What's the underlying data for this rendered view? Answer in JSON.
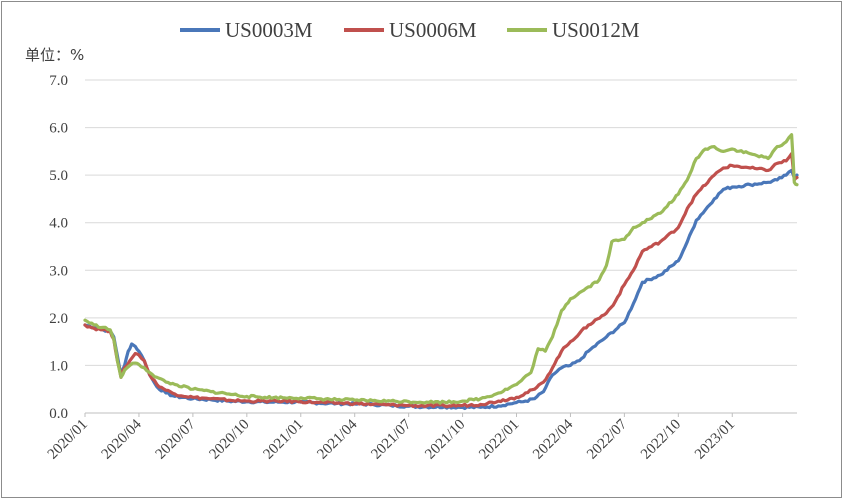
{
  "chart_data": {
    "type": "line",
    "title": "",
    "unit_label": "单位：%",
    "xlabel": "",
    "ylabel": "",
    "ylim": [
      0,
      7
    ],
    "y_ticks": [
      "0.0",
      "1.0",
      "2.0",
      "3.0",
      "4.0",
      "5.0",
      "6.0",
      "7.0"
    ],
    "x_ticks": [
      "2020/01",
      "2020/04",
      "2020/07",
      "2020/10",
      "2021/01",
      "2021/04",
      "2021/07",
      "2021/10",
      "2022/01",
      "2022/04",
      "2022/07",
      "2022/10",
      "2023/01"
    ],
    "x_range_months": [
      0,
      39.6
    ],
    "grid": true,
    "legend_position": "top",
    "series": [
      {
        "name": "US0003M",
        "color": "#4a77b9",
        "points": [
          [
            0,
            1.85
          ],
          [
            0.5,
            1.8
          ],
          [
            1,
            1.75
          ],
          [
            1.4,
            1.72
          ],
          [
            1.6,
            1.6
          ],
          [
            1.8,
            1.2
          ],
          [
            2,
            0.8
          ],
          [
            2.2,
            1.0
          ],
          [
            2.4,
            1.3
          ],
          [
            2.6,
            1.45
          ],
          [
            2.8,
            1.4
          ],
          [
            3,
            1.3
          ],
          [
            3.3,
            1.1
          ],
          [
            3.6,
            0.8
          ],
          [
            4,
            0.55
          ],
          [
            4.5,
            0.42
          ],
          [
            5,
            0.35
          ],
          [
            6,
            0.3
          ],
          [
            7,
            0.28
          ],
          [
            8,
            0.25
          ],
          [
            9,
            0.24
          ],
          [
            10,
            0.23
          ],
          [
            11,
            0.23
          ],
          [
            12,
            0.23
          ],
          [
            13,
            0.21
          ],
          [
            14,
            0.2
          ],
          [
            15,
            0.19
          ],
          [
            16,
            0.18
          ],
          [
            17,
            0.16
          ],
          [
            18,
            0.14
          ],
          [
            19,
            0.13
          ],
          [
            20,
            0.13
          ],
          [
            21,
            0.12
          ],
          [
            22,
            0.12
          ],
          [
            23,
            0.15
          ],
          [
            24,
            0.22
          ],
          [
            24.5,
            0.25
          ],
          [
            25,
            0.3
          ],
          [
            25.5,
            0.45
          ],
          [
            26,
            0.8
          ],
          [
            26.5,
            0.95
          ],
          [
            27,
            1.0
          ],
          [
            27.5,
            1.1
          ],
          [
            28,
            1.3
          ],
          [
            29,
            1.6
          ],
          [
            30,
            1.9
          ],
          [
            30.5,
            2.3
          ],
          [
            31,
            2.75
          ],
          [
            32,
            2.9
          ],
          [
            33,
            3.2
          ],
          [
            33.5,
            3.6
          ],
          [
            34,
            4.05
          ],
          [
            35,
            4.5
          ],
          [
            35.5,
            4.7
          ],
          [
            36,
            4.75
          ],
          [
            37,
            4.8
          ],
          [
            38,
            4.85
          ],
          [
            38.5,
            4.9
          ],
          [
            39,
            5.0
          ],
          [
            39.3,
            5.1
          ],
          [
            39.45,
            4.95
          ],
          [
            39.6,
            5.0
          ]
        ]
      },
      {
        "name": "US0006M",
        "color": "#c0504d",
        "points": [
          [
            0,
            1.85
          ],
          [
            0.5,
            1.78
          ],
          [
            1,
            1.75
          ],
          [
            1.4,
            1.72
          ],
          [
            1.6,
            1.55
          ],
          [
            1.8,
            1.1
          ],
          [
            2,
            0.75
          ],
          [
            2.2,
            0.95
          ],
          [
            2.5,
            1.1
          ],
          [
            2.8,
            1.25
          ],
          [
            3,
            1.22
          ],
          [
            3.3,
            1.1
          ],
          [
            3.6,
            0.8
          ],
          [
            4,
            0.6
          ],
          [
            4.5,
            0.48
          ],
          [
            5,
            0.4
          ],
          [
            6,
            0.33
          ],
          [
            7,
            0.3
          ],
          [
            8,
            0.27
          ],
          [
            9,
            0.25
          ],
          [
            10,
            0.25
          ],
          [
            11,
            0.25
          ],
          [
            12,
            0.24
          ],
          [
            13,
            0.22
          ],
          [
            14,
            0.21
          ],
          [
            15,
            0.2
          ],
          [
            16,
            0.18
          ],
          [
            17,
            0.17
          ],
          [
            18,
            0.16
          ],
          [
            19,
            0.15
          ],
          [
            20,
            0.15
          ],
          [
            21,
            0.16
          ],
          [
            22,
            0.18
          ],
          [
            23,
            0.25
          ],
          [
            24,
            0.33
          ],
          [
            25,
            0.5
          ],
          [
            25.5,
            0.65
          ],
          [
            26,
            0.95
          ],
          [
            26.5,
            1.3
          ],
          [
            27,
            1.5
          ],
          [
            28,
            1.85
          ],
          [
            29,
            2.1
          ],
          [
            29.5,
            2.35
          ],
          [
            30,
            2.7
          ],
          [
            30.5,
            3.0
          ],
          [
            31,
            3.4
          ],
          [
            32,
            3.6
          ],
          [
            33,
            3.9
          ],
          [
            33.5,
            4.3
          ],
          [
            34,
            4.6
          ],
          [
            35,
            5.0
          ],
          [
            35.5,
            5.15
          ],
          [
            36,
            5.2
          ],
          [
            37,
            5.15
          ],
          [
            38,
            5.1
          ],
          [
            38.5,
            5.25
          ],
          [
            39,
            5.3
          ],
          [
            39.3,
            5.45
          ],
          [
            39.45,
            4.9
          ],
          [
            39.6,
            4.95
          ]
        ]
      },
      {
        "name": "US0012M",
        "color": "#9bbb59",
        "points": [
          [
            0,
            1.95
          ],
          [
            0.5,
            1.85
          ],
          [
            1,
            1.8
          ],
          [
            1.4,
            1.75
          ],
          [
            1.6,
            1.55
          ],
          [
            1.8,
            1.1
          ],
          [
            2,
            0.75
          ],
          [
            2.2,
            0.9
          ],
          [
            2.5,
            1.0
          ],
          [
            2.8,
            1.05
          ],
          [
            3,
            1.02
          ],
          [
            3.3,
            0.95
          ],
          [
            3.6,
            0.85
          ],
          [
            4,
            0.75
          ],
          [
            4.5,
            0.65
          ],
          [
            5,
            0.6
          ],
          [
            6,
            0.5
          ],
          [
            7,
            0.45
          ],
          [
            8,
            0.4
          ],
          [
            9,
            0.35
          ],
          [
            10,
            0.33
          ],
          [
            11,
            0.32
          ],
          [
            12,
            0.32
          ],
          [
            13,
            0.3
          ],
          [
            14,
            0.28
          ],
          [
            15,
            0.27
          ],
          [
            16,
            0.26
          ],
          [
            17,
            0.25
          ],
          [
            18,
            0.24
          ],
          [
            19,
            0.23
          ],
          [
            20,
            0.23
          ],
          [
            21,
            0.25
          ],
          [
            22,
            0.3
          ],
          [
            23,
            0.42
          ],
          [
            24,
            0.6
          ],
          [
            24.8,
            0.85
          ],
          [
            25.2,
            1.35
          ],
          [
            25.6,
            1.3
          ],
          [
            26,
            1.6
          ],
          [
            26.5,
            2.15
          ],
          [
            27,
            2.4
          ],
          [
            28,
            2.65
          ],
          [
            28.6,
            2.8
          ],
          [
            29,
            3.1
          ],
          [
            29.3,
            3.6
          ],
          [
            30,
            3.65
          ],
          [
            30.5,
            3.9
          ],
          [
            31,
            4.0
          ],
          [
            32,
            4.2
          ],
          [
            33,
            4.6
          ],
          [
            33.5,
            4.9
          ],
          [
            34,
            5.35
          ],
          [
            34.5,
            5.55
          ],
          [
            35,
            5.6
          ],
          [
            35.5,
            5.5
          ],
          [
            36,
            5.55
          ],
          [
            37,
            5.45
          ],
          [
            38,
            5.35
          ],
          [
            38.5,
            5.6
          ],
          [
            39,
            5.7
          ],
          [
            39.3,
            5.85
          ],
          [
            39.45,
            4.85
          ],
          [
            39.6,
            4.8
          ]
        ]
      }
    ]
  }
}
